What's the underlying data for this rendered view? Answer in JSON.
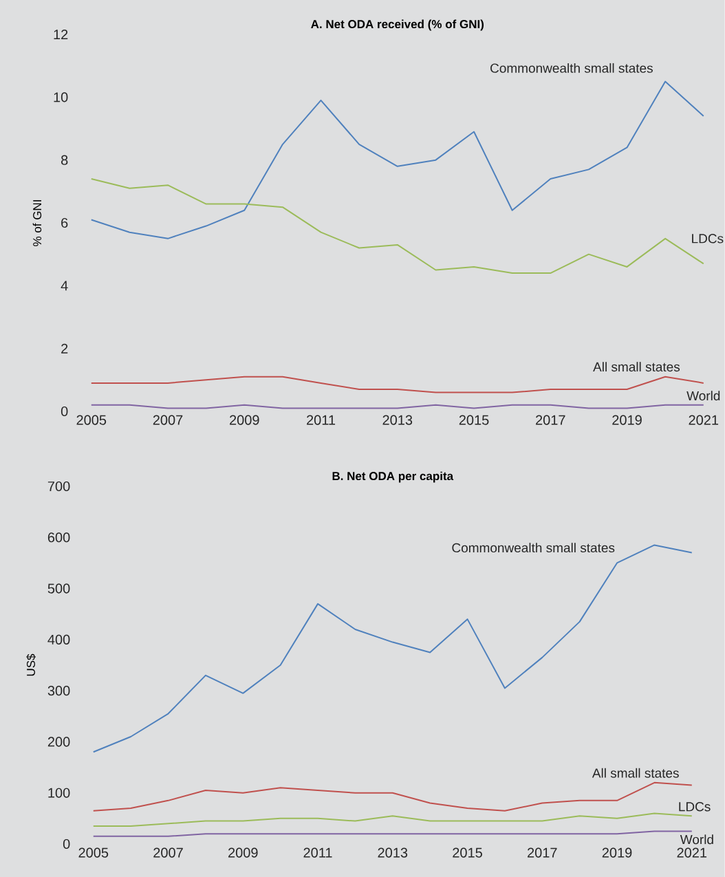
{
  "chart_data": [
    {
      "type": "line",
      "title": "**A.** Net ODA received (% of GNI)",
      "ylabel": "% of GNI",
      "x": [
        2005,
        2006,
        2007,
        2008,
        2009,
        2010,
        2011,
        2012,
        2013,
        2014,
        2015,
        2016,
        2017,
        2018,
        2019,
        2020,
        2021
      ],
      "xlim": [
        2005,
        2021
      ],
      "xticks": [
        2005,
        2007,
        2009,
        2011,
        2013,
        2015,
        2017,
        2019,
        2021
      ],
      "ylim": [
        0,
        12
      ],
      "yticks": [
        0,
        2,
        4,
        6,
        8,
        10,
        12
      ],
      "series": [
        {
          "color": "#4f81bd",
          "values": [
            6.1,
            5.7,
            5.5,
            5.9,
            6.4,
            8.5,
            9.9,
            8.5,
            7.8,
            8.0,
            8.9,
            6.4,
            7.4,
            7.7,
            8.4,
            10.5,
            9.4
          ]
        },
        {
          "color": "#9bbb59",
          "values": [
            7.4,
            7.1,
            7.2,
            6.6,
            6.6,
            6.5,
            5.7,
            5.2,
            5.3,
            4.5,
            4.6,
            4.4,
            4.4,
            5.0,
            4.6,
            5.5,
            4.7
          ]
        },
        {
          "color": "#c0504d",
          "values": [
            0.9,
            0.9,
            0.9,
            1.0,
            1.1,
            1.1,
            0.9,
            0.7,
            0.7,
            0.6,
            0.6,
            0.6,
            0.7,
            0.7,
            0.7,
            1.1,
            0.9
          ]
        },
        {
          "color": "#8064a2",
          "values": [
            0.2,
            0.2,
            0.1,
            0.1,
            0.2,
            0.1,
            0.1,
            0.1,
            0.1,
            0.2,
            0.1,
            0.2,
            0.2,
            0.1,
            0.1,
            0.2,
            0.2
          ]
        }
      ],
      "annotations": [
        "Commonwealth small states",
        "LDCs",
        "All small states",
        "World"
      ]
    },
    {
      "type": "line",
      "title": "**B.** Net ODA per capita",
      "ylabel": "US$",
      "x": [
        2005,
        2006,
        2007,
        2008,
        2009,
        2010,
        2011,
        2012,
        2013,
        2014,
        2015,
        2016,
        2017,
        2018,
        2019,
        2020,
        2021
      ],
      "xlim": [
        2005,
        2021
      ],
      "xticks": [
        2005,
        2007,
        2009,
        2011,
        2013,
        2015,
        2017,
        2019,
        2021
      ],
      "ylim": [
        0,
        700
      ],
      "yticks": [
        0,
        100,
        200,
        300,
        400,
        500,
        600,
        700
      ],
      "series": [
        {
          "color": "#4f81bd",
          "values": [
            180,
            210,
            255,
            330,
            295,
            350,
            470,
            420,
            395,
            375,
            440,
            305,
            365,
            435,
            550,
            585,
            570
          ]
        },
        {
          "color": "#c0504d",
          "values": [
            65,
            70,
            85,
            105,
            100,
            110,
            105,
            100,
            100,
            80,
            70,
            65,
            80,
            85,
            85,
            120,
            115
          ]
        },
        {
          "color": "#9bbb59",
          "values": [
            35,
            35,
            40,
            45,
            45,
            50,
            50,
            45,
            55,
            45,
            45,
            45,
            45,
            55,
            50,
            60,
            55
          ]
        },
        {
          "color": "#8064a2",
          "values": [
            15,
            15,
            15,
            20,
            20,
            20,
            20,
            20,
            20,
            20,
            20,
            20,
            20,
            20,
            20,
            25,
            25
          ]
        }
      ],
      "annotations": [
        "Commonwealth small states",
        "All small states",
        "LDCs",
        "World"
      ]
    }
  ]
}
